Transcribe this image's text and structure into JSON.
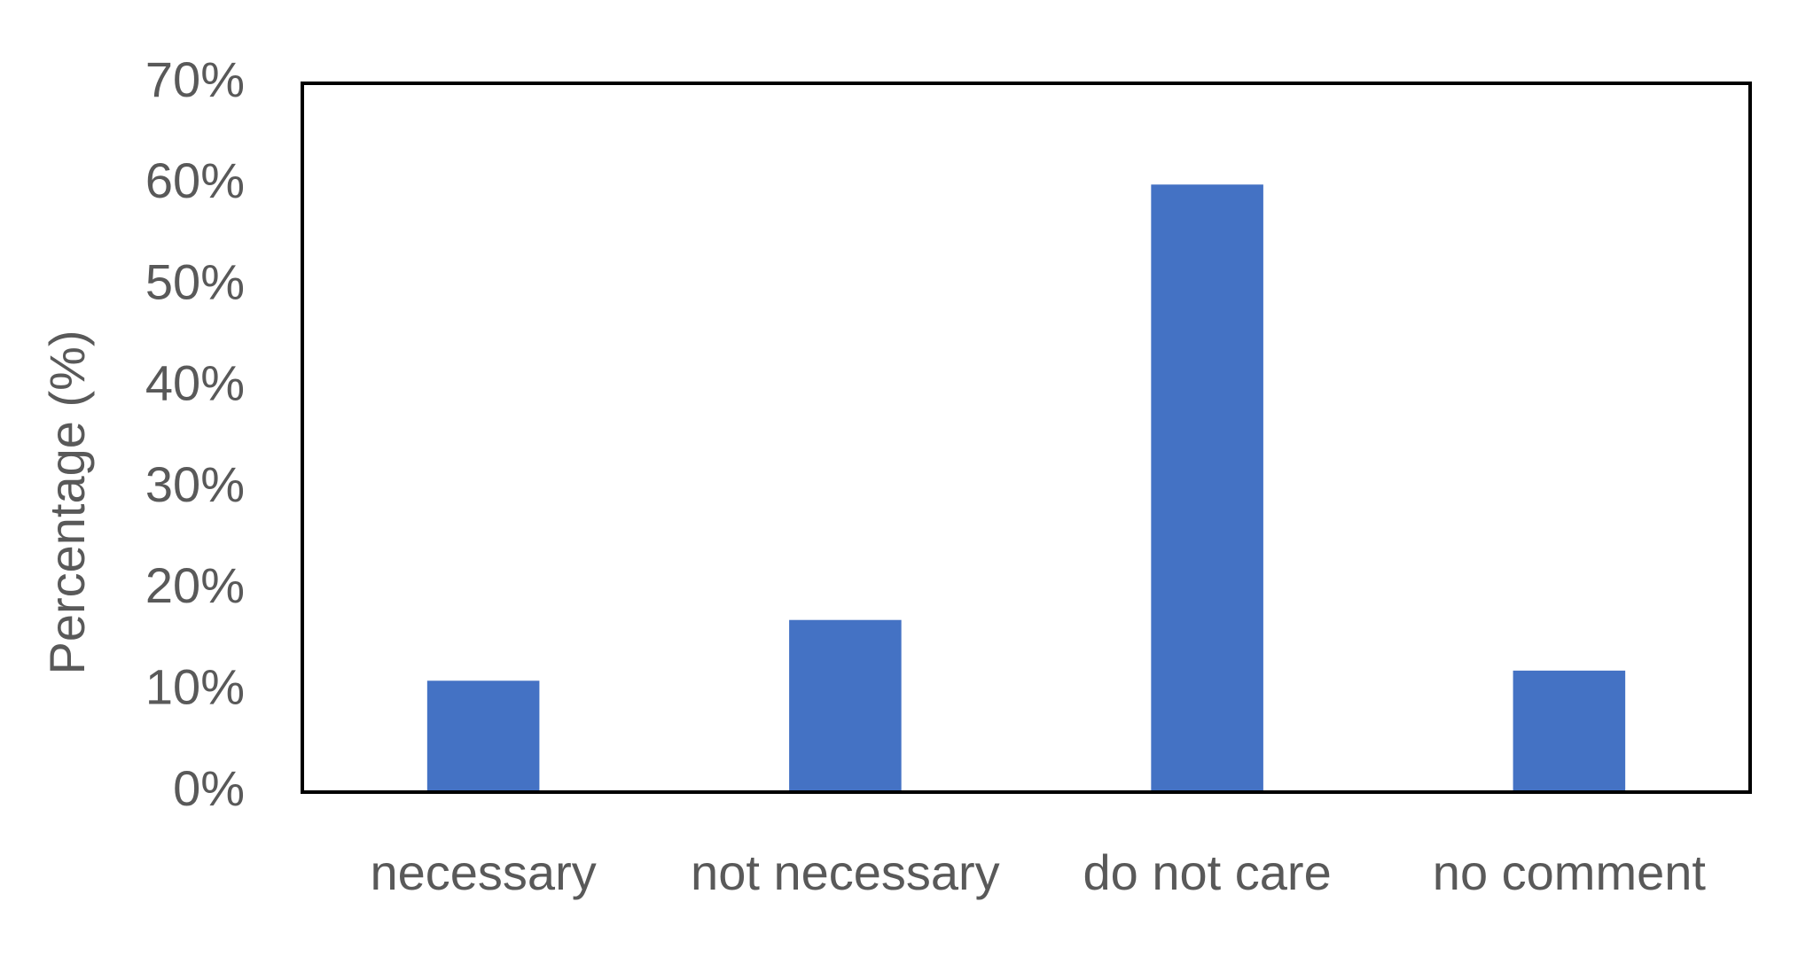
{
  "chart_data": {
    "type": "bar",
    "y_label": "Percentage (%)",
    "categories": [
      "necessary",
      "not necessary",
      "do not care",
      "no comment"
    ],
    "values": [
      11,
      17,
      60,
      12
    ],
    "color": "#4472c4",
    "ylim": [
      0,
      70
    ],
    "yticks": [
      {
        "value": 0,
        "label": "0%"
      },
      {
        "value": 10,
        "label": "10%"
      },
      {
        "value": 20,
        "label": "20%"
      },
      {
        "value": 30,
        "label": "30%"
      },
      {
        "value": 40,
        "label": "40%"
      },
      {
        "value": 50,
        "label": "50%"
      },
      {
        "value": 60,
        "label": "60%"
      },
      {
        "value": 70,
        "label": "70%"
      }
    ],
    "grid": false
  }
}
